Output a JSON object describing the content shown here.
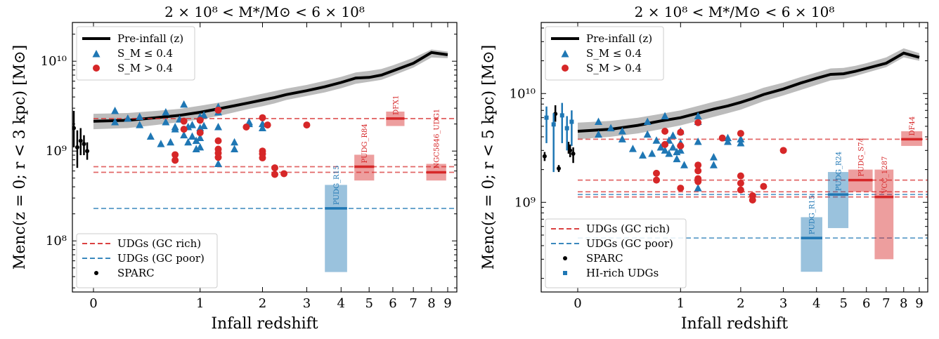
{
  "figure": {
    "type": "scatter"
  },
  "chart_data": [
    {
      "type": "scatter",
      "title": "2 × 10⁸ < M*/M⊙ < 6 × 10⁸",
      "xlabel": "Infall redshift",
      "ylabel": "Menc(z = 0; r < 3 kpc) [M⊙]",
      "yscale": "log",
      "ylim": [
        27000000.0,
        27000000000.0
      ],
      "xlim": [
        -0.23,
        9.2
      ],
      "x_ticks": [
        0,
        1,
        2,
        3,
        4,
        5,
        6,
        7,
        8,
        9
      ],
      "x_tick_labels": [
        "0",
        "1",
        "2",
        "3",
        "4",
        "5",
        "6",
        "7",
        "8",
        "9"
      ],
      "y_ticks": [
        100000000.0,
        1000000000.0,
        10000000000.0
      ],
      "y_tick_labels": [
        "10⁸",
        "10⁹",
        "10¹⁰"
      ],
      "pre_infall": {
        "label": "Pre-infall (z)",
        "z": [
          0,
          0.25,
          0.5,
          0.75,
          1.0,
          1.25,
          1.5,
          1.75,
          2.0,
          2.25,
          2.5,
          3.0,
          3.5,
          4.0,
          4.5,
          5.0,
          5.5,
          6.0,
          7.0,
          8.0,
          9.0
        ],
        "y": [
          2150000000.0,
          2200000000.0,
          2350000000.0,
          2500000000.0,
          2700000000.0,
          2950000000.0,
          3200000000.0,
          3450000000.0,
          3700000000.0,
          3950000000.0,
          4250000000.0,
          4700000000.0,
          5200000000.0,
          5800000000.0,
          6500000000.0,
          6600000000.0,
          7000000000.0,
          7800000000.0,
          9500000000.0,
          12500000000.0,
          11800000000.0
        ],
        "lo": [
          1750000000.0,
          1800000000.0,
          1950000000.0,
          2100000000.0,
          2250000000.0,
          2450000000.0,
          2700000000.0,
          2950000000.0,
          3150000000.0,
          3400000000.0,
          3700000000.0,
          4100000000.0,
          4500000000.0,
          5000000000.0,
          5600000000.0,
          5900000000.0,
          6200000000.0,
          6900000000.0,
          8500000000.0,
          11000000000.0,
          10800000000.0
        ],
        "hi": [
          2600000000.0,
          2650000000.0,
          2800000000.0,
          2950000000.0,
          3200000000.0,
          3450000000.0,
          3750000000.0,
          4050000000.0,
          4350000000.0,
          4650000000.0,
          4950000000.0,
          5450000000.0,
          6050000000.0,
          6700000000.0,
          7500000000.0,
          7800000000.0,
          8200000000.0,
          9000000000.0,
          10900000000.0,
          13500000000.0,
          12800000000.0
        ]
      },
      "series": [
        {
          "name": "S_M ≤ 0.4",
          "marker": "triangle",
          "color": "#1f77b4",
          "x": [
            0.15,
            0.15,
            0.25,
            0.35,
            0.35,
            0.45,
            0.55,
            0.6,
            0.6,
            0.65,
            0.7,
            0.7,
            0.75,
            0.8,
            0.8,
            0.85,
            0.85,
            0.9,
            0.9,
            0.95,
            0.95,
            1.0,
            1.0,
            1.0,
            1.0,
            1.05,
            1.05,
            1.25,
            1.25,
            1.25,
            1.25,
            1.5,
            1.5,
            1.75,
            1.75,
            2.0,
            2.0
          ],
          "y": [
            2800000000.0,
            2100000000.0,
            2300000000.0,
            2400000000.0,
            1950000000.0,
            1450000000.0,
            1200000000.0,
            2700000000.0,
            2100000000.0,
            1250000000.0,
            1750000000.0,
            1850000000.0,
            2250000000.0,
            3300000000.0,
            1500000000.0,
            1850000000.0,
            1250000000.0,
            1950000000.0,
            1450000000.0,
            1050000000.0,
            1300000000.0,
            2400000000.0,
            1800000000.0,
            1400000000.0,
            1100000000.0,
            2500000000.0,
            1900000000.0,
            3100000000.0,
            2700000000.0,
            1850000000.0,
            720000000.0,
            1250000000.0,
            1050000000.0,
            2000000000.0,
            2100000000.0,
            2000000000.0,
            1800000000.0
          ]
        },
        {
          "name": "S_M > 0.4",
          "marker": "circle",
          "color": "#d62728",
          "x": [
            0.7,
            0.7,
            0.8,
            0.8,
            1.0,
            1.0,
            1.25,
            1.25,
            1.25,
            1.25,
            1.25,
            1.7,
            2.0,
            2.0,
            2.0,
            2.0,
            2.1,
            2.25,
            2.25,
            2.45,
            3.0
          ],
          "y": [
            910000000.0,
            790000000.0,
            2150000000.0,
            1750000000.0,
            2200000000.0,
            1600000000.0,
            2850000000.0,
            1300000000.0,
            1050000000.0,
            950000000.0,
            850000000.0,
            1850000000.0,
            2350000000.0,
            1000000000.0,
            930000000.0,
            840000000.0,
            1950000000.0,
            650000000.0,
            550000000.0,
            560000000.0,
            1950000000.0
          ]
        },
        {
          "name": "SPARC",
          "marker": "dot-errorbar",
          "color": "#000000",
          "x": [
            -0.22,
            -0.2,
            -0.17,
            -0.14,
            -0.12,
            -0.1,
            -0.08,
            -0.06,
            -0.04
          ],
          "y": [
            1300000000.0,
            4300000000.0,
            3600000000.0,
            770000000.0,
            1800000000.0,
            1100000000.0,
            1300000000.0,
            1200000000.0,
            1000000000.0
          ],
          "err_lo": [
            1100000000.0,
            3700000000.0,
            3100000000.0,
            620000000.0,
            1100000000.0,
            650000000.0,
            900000000.0,
            900000000.0,
            800000000.0
          ],
          "err_hi": [
            1500000000.0,
            5000000000.0,
            4200000000.0,
            950000000.0,
            2800000000.0,
            1700000000.0,
            1800000000.0,
            1500000000.0,
            1250000000.0
          ]
        }
      ],
      "hlines": [
        {
          "type": "UDGs (GC rich)",
          "color": "#d62728",
          "y": 2300000000.0
        },
        {
          "type": "UDGs (GC rich)",
          "color": "#d62728",
          "y": 670000000.0
        },
        {
          "type": "UDGs (GC rich)",
          "color": "#d62728",
          "y": 580000000.0
        },
        {
          "type": "UDGs (GC poor)",
          "color": "#1f77b4",
          "y": 230000000.0
        }
      ],
      "udg_boxes": [
        {
          "name": "PUDG_R15",
          "color": "#1f77b4",
          "x0": 3.5,
          "x1": 4.2,
          "y": 230000000.0,
          "y_lo": 45000000.0,
          "y_hi": 420000000.0
        },
        {
          "name": "PUDG_R84",
          "color": "#d62728",
          "x0": 4.45,
          "x1": 5.2,
          "y": 670000000.0,
          "y_lo": 470000000.0,
          "y_hi": 910000000.0
        },
        {
          "name": "DFX1",
          "color": "#d62728",
          "x0": 5.7,
          "x1": 6.55,
          "y": 2300000000.0,
          "y_lo": 1900000000.0,
          "y_hi": 2750000000.0
        },
        {
          "name": "NGC5846_UDG1",
          "color": "#d62728",
          "x0": 7.7,
          "x1": 8.9,
          "y": 580000000.0,
          "y_lo": 470000000.0,
          "y_hi": 720000000.0
        }
      ],
      "legend_top": [
        "Pre-infall (z)",
        "S_M ≤ 0.4",
        "S_M > 0.4"
      ],
      "legend_bottom": [
        "UDGs (GC rich)",
        "UDGs (GC poor)",
        "SPARC"
      ]
    },
    {
      "type": "scatter",
      "title": "2 × 10⁸ < M*/M⊙ < 6 × 10⁸",
      "xlabel": "Infall redshift",
      "ylabel": "Menc(z = 0; r < 5 kpc) [M⊙]",
      "yscale": "log",
      "ylim": [
        150000000.0,
        45000000000.0
      ],
      "xlim": [
        -0.23,
        9.2
      ],
      "x_ticks": [
        0,
        1,
        2,
        3,
        4,
        5,
        6,
        7,
        8,
        9
      ],
      "x_tick_labels": [
        "0",
        "1",
        "2",
        "3",
        "4",
        "5",
        "6",
        "7",
        "8",
        "9"
      ],
      "y_ticks": [
        1000000000.0,
        10000000000.0
      ],
      "y_tick_labels": [
        "10⁹",
        "10¹⁰"
      ],
      "pre_infall": {
        "label": "Pre-infall (z)",
        "z": [
          0,
          0.25,
          0.5,
          0.75,
          1.0,
          1.25,
          1.5,
          1.75,
          2.0,
          2.25,
          2.5,
          3.0,
          3.5,
          4.0,
          4.5,
          5.0,
          5.5,
          6.0,
          7.0,
          8.0,
          9.0
        ],
        "y": [
          4500000000.0,
          4700000000.0,
          5100000000.0,
          5600000000.0,
          6000000000.0,
          6600000000.0,
          7200000000.0,
          7700000000.0,
          8300000000.0,
          9000000000.0,
          9800000000.0,
          11000000000.0,
          12500000000.0,
          13800000000.0,
          15000000000.0,
          15200000000.0,
          16000000000.0,
          17000000000.0,
          19000000000.0,
          23500000000.0,
          21500000000.0
        ],
        "lo": [
          3800000000.0,
          4000000000.0,
          4300000000.0,
          4700000000.0,
          5100000000.0,
          5600000000.0,
          6100000000.0,
          6600000000.0,
          7100000000.0,
          7800000000.0,
          8500000000.0,
          9600000000.0,
          10800000000.0,
          12000000000.0,
          13200000000.0,
          13600000000.0,
          14500000000.0,
          15500000000.0,
          17500000000.0,
          21500000000.0,
          20000000000.0
        ],
        "hi": [
          5400000000.0,
          5600000000.0,
          6000000000.0,
          6500000000.0,
          7000000000.0,
          7700000000.0,
          8400000000.0,
          9000000000.0,
          9700000000.0,
          10400000000.0,
          11300000000.0,
          12600000000.0,
          14200000000.0,
          15600000000.0,
          17000000000.0,
          17200000000.0,
          18000000000.0,
          19000000000.0,
          21500000000.0,
          26000000000.0,
          23500000000.0
        ]
      },
      "series": [
        {
          "name": "S_M ≤ 0.4",
          "marker": "triangle",
          "color": "#1f77b4",
          "x": [
            0.15,
            0.15,
            0.25,
            0.35,
            0.35,
            0.45,
            0.55,
            0.6,
            0.6,
            0.65,
            0.7,
            0.75,
            0.8,
            0.8,
            0.85,
            0.85,
            0.9,
            0.9,
            0.95,
            0.95,
            1.0,
            1.0,
            1.0,
            1.05,
            1.25,
            1.25,
            1.25,
            1.25,
            1.5,
            1.5,
            1.75,
            1.75,
            2.0,
            2.0
          ],
          "y": [
            5500000000.0,
            4200000000.0,
            4800000000.0,
            4500000000.0,
            3800000000.0,
            3100000000.0,
            2700000000.0,
            5500000000.0,
            4200000000.0,
            2800000000.0,
            3700000000.0,
            3200000000.0,
            6200000000.0,
            3000000000.0,
            3700000000.0,
            2800000000.0,
            4100000000.0,
            3200000000.0,
            2500000000.0,
            2900000000.0,
            4500000000.0,
            3500000000.0,
            3000000000.0,
            2200000000.0,
            6200000000.0,
            5500000000.0,
            3600000000.0,
            1350000000.0,
            2600000000.0,
            2200000000.0,
            3900000000.0,
            3600000000.0,
            3800000000.0,
            3500000000.0
          ]
        },
        {
          "name": "S_M > 0.4",
          "marker": "circle",
          "color": "#d62728",
          "x": [
            0.7,
            0.7,
            0.8,
            0.8,
            1.0,
            1.0,
            1.0,
            1.25,
            1.25,
            1.25,
            1.25,
            1.25,
            1.65,
            2.0,
            2.0,
            2.0,
            2.0,
            2.25,
            2.25,
            2.5,
            3.0
          ],
          "y": [
            1850000000.0,
            1600000000.0,
            4500000000.0,
            3400000000.0,
            4400000000.0,
            3300000000.0,
            1350000000.0,
            5400000000.0,
            2200000000.0,
            1950000000.0,
            1650000000.0,
            1550000000.0,
            3900000000.0,
            4300000000.0,
            1750000000.0,
            1500000000.0,
            1300000000.0,
            1150000000.0,
            1050000000.0,
            1400000000.0,
            3000000000.0
          ]
        },
        {
          "name": "SPARC",
          "marker": "dot-errorbar",
          "color": "#000000",
          "x": [
            -0.2,
            -0.14,
            -0.12,
            -0.06,
            -0.05,
            -0.03
          ],
          "y": [
            2650000000.0,
            6500000000.0,
            2050000000.0,
            3200000000.0,
            3000000000.0,
            2800000000.0
          ],
          "err_lo": [
            2400000000.0,
            5500000000.0,
            1900000000.0,
            2800000000.0,
            2600000000.0,
            2300000000.0
          ],
          "err_hi": [
            2900000000.0,
            7800000000.0,
            2200000000.0,
            3600000000.0,
            3400000000.0,
            3200000000.0
          ]
        },
        {
          "name": "HI-rich UDGs",
          "marker": "square-errorbar",
          "color": "#1f77b4",
          "x": [
            -0.23,
            -0.19,
            -0.15,
            -0.1,
            -0.07,
            -0.04
          ],
          "y": [
            5500000000.0,
            6000000000.0,
            5200000000.0,
            6300000000.0,
            4800000000.0,
            5500000000.0
          ],
          "err_lo": [
            3200000000.0,
            3500000000.0,
            1900000000.0,
            3500000000.0,
            3000000000.0,
            3300000000.0
          ],
          "err_hi": [
            7000000000.0,
            7600000000.0,
            6600000000.0,
            8200000000.0,
            6200000000.0,
            7000000000.0
          ]
        }
      ],
      "hlines": [
        {
          "type": "UDGs (GC rich)",
          "color": "#d62728",
          "y": 3800000000.0
        },
        {
          "type": "UDGs (GC rich)",
          "color": "#d62728",
          "y": 1600000000.0
        },
        {
          "type": "UDGs (GC rich)",
          "color": "#d62728",
          "y": 1250000000.0
        },
        {
          "type": "UDGs (GC rich)",
          "color": "#d62728",
          "y": 1120000000.0
        },
        {
          "type": "UDGs (GC poor)",
          "color": "#1f77b4",
          "y": 1180000000.0
        },
        {
          "type": "UDGs (GC poor)",
          "color": "#1f77b4",
          "y": 470000000.0
        }
      ],
      "udg_boxes": [
        {
          "name": "PUDG_R15",
          "color": "#1f77b4",
          "x0": 3.5,
          "x1": 4.2,
          "y": 470000000.0,
          "y_lo": 230000000.0,
          "y_hi": 730000000.0
        },
        {
          "name": "PUDG_R24",
          "color": "#1f77b4",
          "x0": 4.4,
          "x1": 5.2,
          "y": 1180000000.0,
          "y_lo": 580000000.0,
          "y_hi": 1900000000.0
        },
        {
          "name": "PUDG_S74",
          "color": "#d62728",
          "x0": 5.2,
          "x1": 6.3,
          "y": 1600000000.0,
          "y_lo": 1250000000.0,
          "y_hi": 2000000000.0
        },
        {
          "name": "VCC_1287",
          "color": "#d62728",
          "x0": 6.4,
          "x1": 7.4,
          "y": 1120000000.0,
          "y_lo": 300000000.0,
          "y_hi": 2000000000.0
        },
        {
          "name": "DF44",
          "color": "#d62728",
          "x0": 7.85,
          "x1": 9.2,
          "y": 3800000000.0,
          "y_lo": 3300000000.0,
          "y_hi": 4500000000.0
        }
      ],
      "legend_top": [
        "Pre-infall (z)",
        "S_M ≤ 0.4",
        "S_M > 0.4"
      ],
      "legend_bottom": [
        "UDGs (GC rich)",
        "UDGs (GC poor)",
        "SPARC",
        "HI-rich UDGs"
      ]
    }
  ]
}
